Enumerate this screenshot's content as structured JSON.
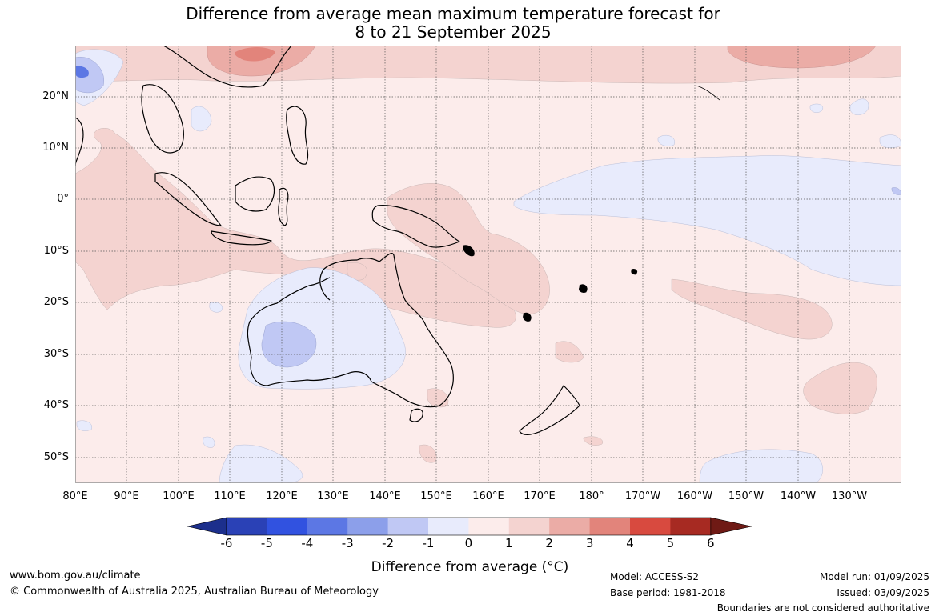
{
  "title": {
    "line1": "Difference from average mean maximum temperature forecast for",
    "line2": "8 to 21 September 2025"
  },
  "axes": {
    "latitudes": [
      "20°N",
      "10°N",
      "0°",
      "10°S",
      "20°S",
      "30°S",
      "40°S",
      "50°S"
    ],
    "longitudes": [
      "80°E",
      "90°E",
      "100°E",
      "110°E",
      "120°E",
      "130°E",
      "140°E",
      "150°E",
      "160°E",
      "170°E",
      "180°",
      "170°W",
      "160°W",
      "150°W",
      "140°W",
      "130°W"
    ]
  },
  "colorbar": {
    "ticks": [
      "-6",
      "-5",
      "-4",
      "-3",
      "-2",
      "-1",
      "0",
      "1",
      "2",
      "3",
      "4",
      "5",
      "6"
    ],
    "label": "Difference from average (°C)",
    "colors": [
      "#1c2f8c",
      "#2a41b6",
      "#3152e0",
      "#5c77e4",
      "#8c9fea",
      "#c0c8f4",
      "#e8ebfc",
      "#fceceb",
      "#f4d3d0",
      "#ebaca6",
      "#e2847b",
      "#d84a3f",
      "#a72a22",
      "#6f1a15"
    ]
  },
  "footer": {
    "website": "www.bom.gov.au/climate",
    "copyright": "© Commonwealth of Australia 2025, Australian Bureau of Meteorology",
    "model": "Model: ACCESS-S2",
    "base_period": "Base period: 1981-2018",
    "model_run": "Model run: 01/09/2025",
    "issued": "Issued: 03/09/2025",
    "disclaimer": "Boundaries are not considered authoritative"
  }
}
